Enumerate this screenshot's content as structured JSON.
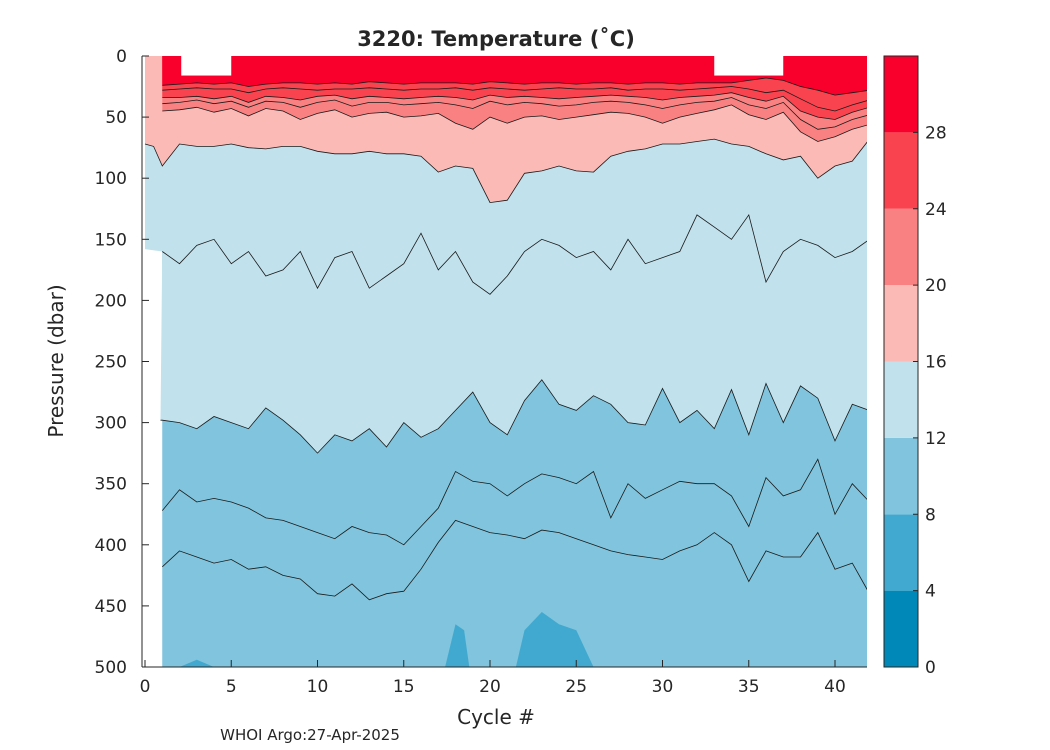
{
  "chart_data": {
    "type": "heatmap",
    "title": "3220:  Temperature (˚C)",
    "xlabel": "Cycle #",
    "ylabel": "Pressure (dbar)",
    "xlim": [
      -1,
      42.5
    ],
    "ylim": [
      0,
      500
    ],
    "y_reversed": true,
    "xticks": [
      0,
      5,
      10,
      15,
      20,
      25,
      30,
      35,
      40
    ],
    "yticks": [
      0,
      50,
      100,
      150,
      200,
      250,
      300,
      350,
      400,
      450,
      500
    ],
    "cycle_range": [
      0,
      42
    ],
    "no_data_columns": [
      0,
      1
    ],
    "colorbar": {
      "ticks": [
        0,
        4,
        8,
        12,
        16,
        20,
        24,
        28
      ],
      "range": [
        0,
        32
      ],
      "bands": [
        {
          "from": 0,
          "to": 4,
          "color": "#0089b8"
        },
        {
          "from": 4,
          "to": 8,
          "color": "#41a9cf"
        },
        {
          "from": 8,
          "to": 12,
          "color": "#80c4dd"
        },
        {
          "from": 12,
          "to": 16,
          "color": "#c1e1ec"
        },
        {
          "from": 16,
          "to": 20,
          "color": "#fcbab6"
        },
        {
          "from": 20,
          "to": 24,
          "color": "#fa8181"
        },
        {
          "from": 24,
          "to": 28,
          "color": "#f9434f"
        },
        {
          "from": 28,
          "to": 32,
          "color": "#f9002c"
        }
      ]
    },
    "isotherms": [
      {
        "value": 28,
        "x": [
          1,
          2,
          3,
          4,
          5,
          6,
          7,
          8,
          9,
          10,
          11,
          12,
          13,
          14,
          15,
          16,
          17,
          18,
          19,
          20,
          21,
          22,
          23,
          24,
          25,
          26,
          27,
          28,
          29,
          30,
          31,
          32,
          33,
          34,
          35,
          36,
          37,
          38,
          39,
          40,
          41,
          42
        ],
        "depth": [
          24,
          23,
          22,
          23,
          22,
          25,
          23,
          22,
          22,
          23,
          22,
          23,
          21,
          22,
          23,
          22,
          22,
          22,
          23,
          21,
          22,
          23,
          22,
          22,
          23,
          22,
          22,
          23,
          22,
          22,
          23,
          22,
          22,
          22,
          20,
          18,
          20,
          25,
          28,
          32,
          30,
          28
        ]
      },
      {
        "value": 26,
        "x": [
          1,
          2,
          3,
          4,
          5,
          6,
          7,
          8,
          9,
          10,
          11,
          12,
          13,
          14,
          15,
          16,
          17,
          18,
          19,
          20,
          21,
          22,
          23,
          24,
          25,
          26,
          27,
          28,
          29,
          30,
          31,
          32,
          33,
          34,
          35,
          36,
          37,
          38,
          39,
          40,
          41,
          42
        ],
        "depth": [
          28,
          27,
          26,
          27,
          27,
          30,
          27,
          26,
          27,
          28,
          27,
          27,
          26,
          27,
          28,
          27,
          27,
          26,
          28,
          26,
          27,
          28,
          27,
          26,
          27,
          27,
          26,
          28,
          27,
          27,
          28,
          27,
          26,
          25,
          27,
          30,
          28,
          35,
          42,
          45,
          40,
          36
        ]
      },
      {
        "value": 24,
        "x": [
          1,
          2,
          3,
          4,
          5,
          6,
          7,
          8,
          9,
          10,
          11,
          12,
          13,
          14,
          15,
          16,
          17,
          18,
          19,
          20,
          21,
          22,
          23,
          24,
          25,
          26,
          27,
          28,
          29,
          30,
          31,
          32,
          33,
          34,
          35,
          36,
          37,
          38,
          39,
          40,
          41,
          42
        ],
        "depth": [
          34,
          34,
          33,
          35,
          33,
          38,
          33,
          34,
          36,
          33,
          32,
          35,
          33,
          34,
          35,
          34,
          33,
          34,
          36,
          32,
          34,
          33,
          34,
          35,
          34,
          33,
          32,
          33,
          34,
          36,
          34,
          33,
          32,
          30,
          34,
          37,
          33,
          45,
          50,
          52,
          46,
          42
        ]
      },
      {
        "value": 22,
        "x": [
          1,
          2,
          3,
          4,
          5,
          6,
          7,
          8,
          9,
          10,
          11,
          12,
          13,
          14,
          15,
          16,
          17,
          18,
          19,
          20,
          21,
          22,
          23,
          24,
          25,
          26,
          27,
          28,
          29,
          30,
          31,
          32,
          33,
          34,
          35,
          36,
          37,
          38,
          39,
          40,
          41,
          42
        ],
        "depth": [
          39,
          38,
          36,
          39,
          37,
          42,
          37,
          38,
          42,
          38,
          36,
          41,
          38,
          38,
          40,
          39,
          38,
          40,
          43,
          37,
          40,
          38,
          39,
          41,
          40,
          38,
          37,
          38,
          40,
          43,
          40,
          38,
          37,
          34,
          40,
          43,
          38,
          52,
          60,
          58,
          52,
          48
        ]
      },
      {
        "value": 20,
        "x": [
          1,
          2,
          3,
          4,
          5,
          6,
          7,
          8,
          9,
          10,
          11,
          12,
          13,
          14,
          15,
          16,
          17,
          18,
          19,
          20,
          21,
          22,
          23,
          24,
          25,
          26,
          27,
          28,
          29,
          30,
          31,
          32,
          33,
          34,
          35,
          36,
          37,
          38,
          39,
          40,
          41,
          42
        ],
        "depth": [
          45,
          44,
          42,
          46,
          43,
          49,
          43,
          45,
          52,
          47,
          44,
          50,
          47,
          46,
          50,
          49,
          47,
          55,
          60,
          50,
          55,
          50,
          49,
          52,
          50,
          48,
          46,
          47,
          50,
          55,
          50,
          47,
          44,
          40,
          48,
          52,
          46,
          62,
          70,
          66,
          60,
          56
        ]
      },
      {
        "value": 16,
        "x": [
          0,
          0.5,
          1,
          2,
          3,
          4,
          5,
          6,
          7,
          8,
          9,
          10,
          11,
          12,
          13,
          14,
          15,
          16,
          17,
          18,
          19,
          20,
          21,
          22,
          23,
          24,
          25,
          26,
          27,
          28,
          29,
          30,
          31,
          32,
          33,
          34,
          35,
          36,
          37,
          38,
          39,
          40,
          41,
          42
        ],
        "depth": [
          72,
          74,
          90,
          72,
          74,
          74,
          72,
          75,
          76,
          74,
          74,
          78,
          80,
          80,
          78,
          80,
          80,
          82,
          95,
          90,
          92,
          120,
          118,
          96,
          94,
          90,
          94,
          95,
          82,
          78,
          76,
          72,
          72,
          70,
          68,
          72,
          74,
          80,
          85,
          82,
          100,
          90,
          86,
          68
        ]
      },
      {
        "value": 14,
        "x": [
          1,
          2,
          3,
          4,
          5,
          6,
          7,
          8,
          9,
          10,
          11,
          12,
          13,
          14,
          15,
          16,
          17,
          18,
          19,
          20,
          21,
          22,
          23,
          24,
          25,
          26,
          27,
          28,
          29,
          30,
          31,
          32,
          33,
          34,
          35,
          36,
          37,
          38,
          39,
          40,
          41,
          42
        ],
        "depth": [
          160,
          170,
          155,
          150,
          170,
          160,
          180,
          175,
          160,
          190,
          165,
          160,
          190,
          180,
          170,
          145,
          175,
          160,
          185,
          195,
          180,
          160,
          150,
          155,
          165,
          160,
          175,
          150,
          170,
          165,
          160,
          130,
          140,
          150,
          130,
          185,
          160,
          150,
          155,
          165,
          160,
          150
        ]
      },
      {
        "value": 12,
        "x": [
          0.9,
          1,
          2,
          3,
          4,
          5,
          6,
          7,
          8,
          9,
          10,
          11,
          12,
          13,
          14,
          15,
          16,
          17,
          18,
          19,
          20,
          21,
          22,
          23,
          24,
          25,
          26,
          27,
          28,
          29,
          30,
          31,
          32,
          33,
          34,
          35,
          36,
          37,
          38,
          39,
          40,
          41,
          42
        ],
        "depth": [
          298,
          298,
          300,
          305,
          295,
          300,
          305,
          288,
          298,
          310,
          325,
          310,
          315,
          305,
          320,
          300,
          312,
          305,
          290,
          275,
          300,
          310,
          282,
          265,
          285,
          290,
          278,
          285,
          300,
          302,
          272,
          300,
          290,
          305,
          273,
          310,
          268,
          300,
          270,
          280,
          315,
          285,
          290
        ]
      },
      {
        "value": 10,
        "x": [
          1,
          2,
          3,
          4,
          5,
          6,
          7,
          8,
          9,
          10,
          11,
          12,
          13,
          14,
          15,
          16,
          17,
          18,
          19,
          20,
          21,
          22,
          23,
          24,
          25,
          26,
          27,
          28,
          29,
          30,
          31,
          32,
          33,
          34,
          35,
          36,
          37,
          38,
          39,
          40,
          41,
          42
        ],
        "depth": [
          372,
          355,
          365,
          362,
          365,
          370,
          378,
          380,
          385,
          390,
          395,
          385,
          390,
          392,
          400,
          385,
          370,
          340,
          348,
          350,
          360,
          350,
          342,
          345,
          350,
          340,
          378,
          350,
          362,
          355,
          348,
          350,
          350,
          360,
          385,
          345,
          360,
          355,
          330,
          375,
          350,
          365
        ]
      },
      {
        "value": 8,
        "x": [
          1,
          2,
          3,
          4,
          5,
          6,
          7,
          8,
          9,
          10,
          11,
          12,
          13,
          14,
          15,
          16,
          17,
          18,
          19,
          20,
          21,
          22,
          23,
          24,
          25,
          26,
          27,
          28,
          29,
          30,
          31,
          32,
          33,
          34,
          35,
          36,
          37,
          38,
          39,
          40,
          41,
          42
        ],
        "depth": [
          418,
          405,
          410,
          415,
          412,
          420,
          418,
          425,
          428,
          440,
          442,
          432,
          445,
          440,
          438,
          420,
          398,
          380,
          385,
          390,
          392,
          395,
          388,
          390,
          395,
          400,
          405,
          408,
          410,
          412,
          405,
          400,
          390,
          400,
          430,
          405,
          410,
          410,
          390,
          420,
          415,
          440
        ]
      }
    ],
    "regions_4to8": [
      {
        "x": [
          2,
          3,
          4
        ],
        "depth": [
          500,
          494,
          500
        ]
      },
      {
        "x": [
          17.4,
          18,
          18.5,
          18.8
        ],
        "depth": [
          500,
          465,
          470,
          500
        ]
      },
      {
        "x": [
          19.8,
          20.2
        ],
        "depth": [
          500,
          492
        ]
      },
      {
        "x": [
          21.5,
          22,
          23,
          24,
          25,
          26
        ],
        "depth": [
          500,
          470,
          455,
          465,
          470,
          500
        ]
      },
      {
        "x": [
          28.8,
          29.2
        ],
        "depth": [
          500,
          490
        ]
      }
    ],
    "no_data_top": [
      {
        "x": [
          2.1,
          5
        ],
        "depth": [
          0,
          16
        ]
      },
      {
        "x": [
          33,
          37
        ],
        "depth": [
          0,
          16
        ]
      }
    ]
  },
  "footer": {
    "credit": "WHOI Argo:27-Apr-2025"
  }
}
